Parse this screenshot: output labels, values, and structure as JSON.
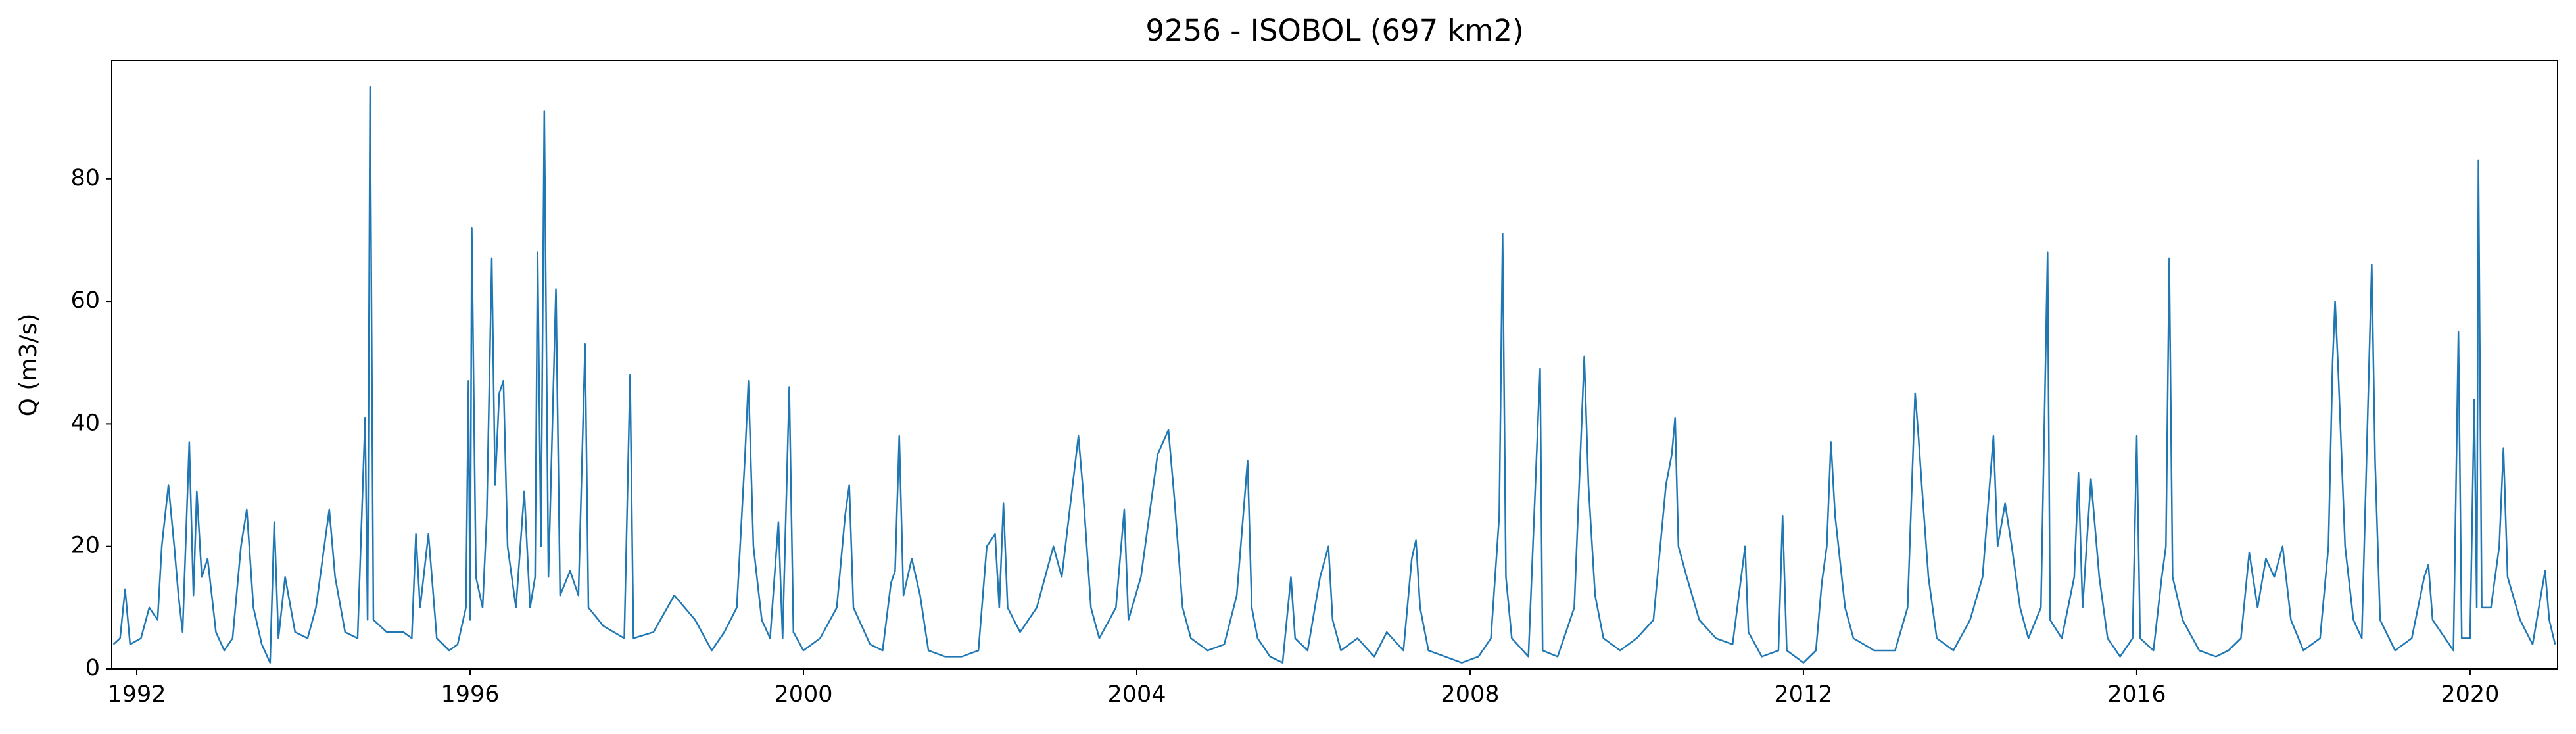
{
  "chart_data": {
    "type": "line",
    "title": "9256 - ISOBOL (697 km2)",
    "y_label": "Q (m3/s)",
    "x": [
      1991.72,
      1991.8,
      1991.86,
      1991.92,
      1992.05,
      1992.15,
      1992.25,
      1992.3,
      1992.38,
      1992.45,
      1992.5,
      1992.55,
      1992.63,
      1992.68,
      1992.72,
      1992.78,
      1992.85,
      1992.95,
      1993.05,
      1993.15,
      1993.25,
      1993.32,
      1993.4,
      1993.5,
      1993.6,
      1993.65,
      1993.7,
      1993.78,
      1993.9,
      1994.05,
      1994.15,
      1994.25,
      1994.31,
      1994.38,
      1994.5,
      1994.65,
      1994.74,
      1994.77,
      1994.8,
      1994.84,
      1995.0,
      1995.2,
      1995.3,
      1995.35,
      1995.4,
      1995.5,
      1995.6,
      1995.75,
      1995.85,
      1995.95,
      1995.98,
      1996.0,
      1996.02,
      1996.07,
      1996.15,
      1996.2,
      1996.26,
      1996.3,
      1996.35,
      1996.4,
      1996.45,
      1996.55,
      1996.65,
      1996.72,
      1996.78,
      1996.81,
      1996.85,
      1996.89,
      1996.94,
      1997.03,
      1997.08,
      1997.2,
      1997.3,
      1997.38,
      1997.42,
      1997.6,
      1997.85,
      1997.92,
      1997.96,
      1998.2,
      1998.45,
      1998.7,
      1998.9,
      1999.05,
      1999.2,
      1999.3,
      1999.34,
      1999.4,
      1999.5,
      1999.6,
      1999.7,
      1999.75,
      1999.83,
      1999.88,
      2000.0,
      2000.2,
      2000.4,
      2000.5,
      2000.55,
      2000.6,
      2000.8,
      2000.95,
      2001.05,
      2001.1,
      2001.15,
      2001.2,
      2001.3,
      2001.4,
      2001.5,
      2001.7,
      2001.9,
      2002.1,
      2002.2,
      2002.3,
      2002.35,
      2002.4,
      2002.45,
      2002.6,
      2002.8,
      2003.0,
      2003.1,
      2003.3,
      2003.35,
      2003.45,
      2003.55,
      2003.75,
      2003.85,
      2003.9,
      2004.05,
      2004.25,
      2004.38,
      2004.45,
      2004.55,
      2004.65,
      2004.85,
      2005.05,
      2005.2,
      2005.33,
      2005.38,
      2005.45,
      2005.6,
      2005.75,
      2005.85,
      2005.9,
      2006.05,
      2006.2,
      2006.3,
      2006.35,
      2006.45,
      2006.65,
      2006.85,
      2007.0,
      2007.2,
      2007.3,
      2007.35,
      2007.4,
      2007.5,
      2007.7,
      2007.9,
      2008.1,
      2008.25,
      2008.35,
      2008.39,
      2008.43,
      2008.5,
      2008.7,
      2008.84,
      2008.87,
      2009.05,
      2009.25,
      2009.37,
      2009.42,
      2009.5,
      2009.6,
      2009.8,
      2010.0,
      2010.2,
      2010.35,
      2010.42,
      2010.46,
      2010.5,
      2010.6,
      2010.75,
      2010.95,
      2011.15,
      2011.3,
      2011.34,
      2011.5,
      2011.7,
      2011.75,
      2011.8,
      2012.0,
      2012.15,
      2012.22,
      2012.28,
      2012.33,
      2012.38,
      2012.5,
      2012.6,
      2012.85,
      2013.1,
      2013.25,
      2013.34,
      2013.38,
      2013.42,
      2013.5,
      2013.6,
      2013.8,
      2014.0,
      2014.15,
      2014.28,
      2014.33,
      2014.42,
      2014.5,
      2014.6,
      2014.7,
      2014.85,
      2014.93,
      2014.96,
      2015.1,
      2015.25,
      2015.3,
      2015.35,
      2015.45,
      2015.55,
      2015.65,
      2015.8,
      2015.95,
      2016.0,
      2016.04,
      2016.2,
      2016.3,
      2016.35,
      2016.39,
      2016.43,
      2016.55,
      2016.75,
      2016.95,
      2017.1,
      2017.25,
      2017.35,
      2017.45,
      2017.55,
      2017.65,
      2017.75,
      2017.85,
      2018.0,
      2018.2,
      2018.3,
      2018.35,
      2018.38,
      2018.42,
      2018.5,
      2018.6,
      2018.7,
      2018.82,
      2018.86,
      2018.92,
      2019.1,
      2019.3,
      2019.45,
      2019.5,
      2019.55,
      2019.7,
      2019.8,
      2019.86,
      2019.9,
      2020.0,
      2020.05,
      2020.08,
      2020.1,
      2020.14,
      2020.25,
      2020.35,
      2020.4,
      2020.45,
      2020.6,
      2020.75,
      2020.85,
      2020.9,
      2020.95,
      2021.02
    ],
    "series": [
      {
        "color": "#1f77b4",
        "values": [
          4,
          5,
          13,
          4,
          5,
          10,
          8,
          20,
          30,
          20,
          12,
          6,
          37,
          12,
          29,
          15,
          18,
          6,
          3,
          5,
          20,
          26,
          10,
          4,
          1,
          24,
          5,
          15,
          6,
          5,
          10,
          20,
          26,
          15,
          6,
          5,
          41,
          8,
          95,
          8,
          6,
          6,
          5,
          22,
          10,
          22,
          5,
          3,
          4,
          10,
          47,
          8,
          72,
          15,
          10,
          25,
          67,
          30,
          45,
          47,
          20,
          10,
          29,
          10,
          15,
          68,
          20,
          91,
          15,
          62,
          12,
          16,
          12,
          53,
          10,
          7,
          5,
          48,
          5,
          6,
          12,
          8,
          3,
          6,
          10,
          35,
          47,
          20,
          8,
          5,
          24,
          5,
          46,
          6,
          3,
          5,
          10,
          25,
          30,
          10,
          4,
          3,
          14,
          16,
          38,
          12,
          18,
          12,
          3,
          2,
          2,
          3,
          20,
          22,
          10,
          27,
          10,
          6,
          10,
          20,
          15,
          38,
          30,
          10,
          5,
          10,
          26,
          8,
          15,
          35,
          39,
          28,
          10,
          5,
          3,
          4,
          12,
          34,
          10,
          5,
          2,
          1,
          15,
          5,
          3,
          15,
          20,
          8,
          3,
          5,
          2,
          6,
          3,
          18,
          21,
          10,
          3,
          2,
          1,
          2,
          5,
          25,
          71,
          15,
          5,
          2,
          49,
          3,
          2,
          10,
          51,
          30,
          12,
          5,
          3,
          5,
          8,
          30,
          35,
          41,
          20,
          15,
          8,
          5,
          4,
          20,
          6,
          2,
          3,
          25,
          3,
          1,
          3,
          14,
          20,
          37,
          25,
          10,
          5,
          3,
          3,
          10,
          45,
          38,
          30,
          15,
          5,
          3,
          8,
          15,
          38,
          20,
          27,
          20,
          10,
          5,
          10,
          68,
          8,
          5,
          15,
          32,
          10,
          31,
          15,
          5,
          2,
          5,
          38,
          5,
          3,
          15,
          20,
          67,
          15,
          8,
          3,
          2,
          3,
          5,
          19,
          10,
          18,
          15,
          20,
          8,
          3,
          5,
          20,
          50,
          60,
          48,
          20,
          8,
          5,
          66,
          34,
          8,
          3,
          5,
          15,
          17,
          8,
          5,
          3,
          55,
          5,
          5,
          44,
          10,
          83,
          10,
          10,
          20,
          36,
          15,
          8,
          4,
          12,
          16,
          8,
          4
        ]
      }
    ],
    "xlim": [
      1991.7,
      2021.05
    ],
    "ylim": [
      0,
      99.3
    ],
    "xticks": [
      1992,
      1996,
      2000,
      2004,
      2008,
      2012,
      2016,
      2020
    ],
    "yticks": [
      0,
      20,
      40,
      60,
      80
    ],
    "grid": false
  }
}
